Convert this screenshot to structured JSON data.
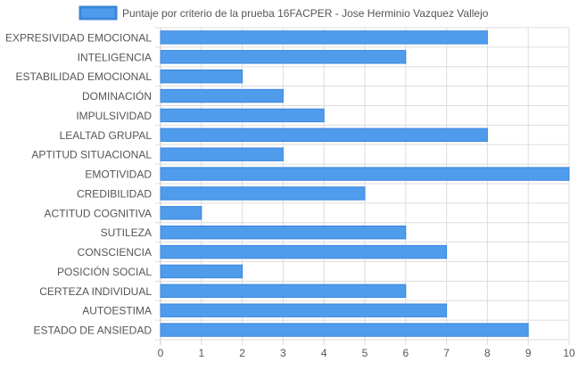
{
  "chart_data": {
    "type": "bar",
    "orientation": "horizontal",
    "legend": {
      "position": "top",
      "label": "Puntaje por criterio de la prueba 16FACPER - Jose Herminio Vazquez Vallejo"
    },
    "categories": [
      "EXPRESIVIDAD EMOCIONAL",
      "INTELIGENCIA",
      "ESTABILIDAD EMOCIONAL",
      "DOMINACIÓN",
      "IMPULSIVIDAD",
      "LEALTAD GRUPAL",
      "APTITUD SITUACIONAL",
      "EMOTIVIDAD",
      "CREDIBILIDAD",
      "ACTITUD COGNITIVA",
      "SUTILEZA",
      "CONSCIENCIA",
      "POSICIÓN SOCIAL",
      "CERTEZA INDIVIDUAL",
      "AUTOESTIMA",
      "ESTADO DE ANSIEDAD"
    ],
    "series": [
      {
        "name": "Puntaje por criterio de la prueba 16FACPER - Jose Herminio Vazquez Vallejo",
        "values": [
          8,
          6,
          2,
          3,
          4,
          8,
          3,
          10,
          5,
          1,
          6,
          7,
          2,
          6,
          7,
          9
        ]
      }
    ],
    "xlim": [
      0,
      10
    ],
    "xticks": [
      "0",
      "1",
      "2",
      "3",
      "4",
      "5",
      "6",
      "7",
      "8",
      "9",
      "10"
    ],
    "grid": true,
    "colors": {
      "bar_fill": "#4f9ced",
      "bar_stroke": "#3b86db",
      "grid": "#dddddd",
      "text": "#555555"
    }
  }
}
